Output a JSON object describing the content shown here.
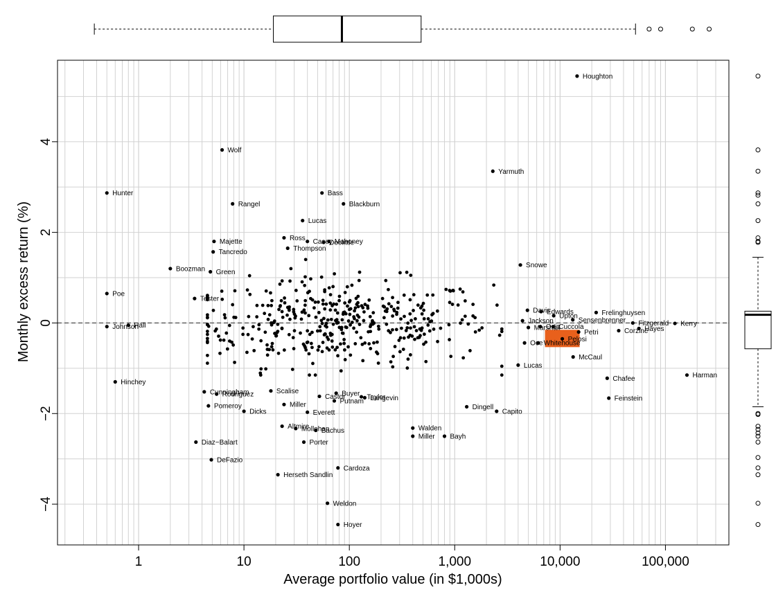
{
  "chart_data": {
    "type": "scatter",
    "title": "",
    "xlabel": "Average portfolio value (in $1,000s)",
    "ylabel": "Monthly excess return (%)",
    "x_scale": "log",
    "xlim": [
      0.17,
      400000
    ],
    "ylim": [
      -4.9,
      5.8
    ],
    "x_ticks": [
      1,
      10,
      100,
      1000,
      10000,
      100000
    ],
    "x_tick_labels": [
      "1",
      "10",
      "100",
      "1,000",
      "10,000",
      "100,000"
    ],
    "y_ticks": [
      -4,
      -2,
      0,
      2,
      4
    ],
    "y_tick_labels": [
      "−4",
      "−2",
      "0",
      "2",
      "4"
    ],
    "grid": true,
    "reference_line_y": 0,
    "highlight": {
      "name": "Pelosi",
      "x": 10500,
      "y": -0.35,
      "color": "#e8601c"
    },
    "top_boxplot": {
      "min": 0.38,
      "q1": 19,
      "median": 85,
      "q3": 480,
      "max": 52000,
      "outliers": [
        70000,
        90000,
        180000,
        260000
      ]
    },
    "right_boxplot": {
      "min": -1.85,
      "q1": -0.57,
      "median": 0.18,
      "q3": 0.26,
      "max": 1.45,
      "outliers": [
        5.45,
        3.82,
        3.35,
        2.87,
        2.82,
        2.63,
        2.26,
        1.88,
        1.8,
        1.78,
        -2.0,
        -2.02,
        -2.28,
        -2.35,
        -2.43,
        -2.5,
        -2.63,
        -2.97,
        -3.2,
        -3.35,
        -3.98,
        -4.45
      ]
    },
    "labeled_points": [
      {
        "name": "Houghton",
        "x": 14500,
        "y": 5.45
      },
      {
        "name": "Wolf",
        "x": 6.2,
        "y": 3.82
      },
      {
        "name": "Yarmuth",
        "x": 2300,
        "y": 3.35
      },
      {
        "name": "Hunter",
        "x": 0.5,
        "y": 2.87
      },
      {
        "name": "Bass",
        "x": 55,
        "y": 2.87
      },
      {
        "name": "Rangel",
        "x": 7.8,
        "y": 2.63
      },
      {
        "name": "Blackburn",
        "x": 88,
        "y": 2.63
      },
      {
        "name": "Lucas",
        "x": 36,
        "y": 2.26
      },
      {
        "name": "Ross",
        "x": 24,
        "y": 1.88
      },
      {
        "name": "Majette",
        "x": 5.2,
        "y": 1.8
      },
      {
        "name": "Casey",
        "x": 40,
        "y": 1.8
      },
      {
        "name": "Mahoney",
        "x": 64,
        "y": 1.8
      },
      {
        "name": "Doolittle",
        "x": 57,
        "y": 1.78
      },
      {
        "name": "Thompson",
        "x": 26,
        "y": 1.65
      },
      {
        "name": "Tancredo",
        "x": 5.1,
        "y": 1.57
      },
      {
        "name": "Boozman",
        "x": 2,
        "y": 1.2
      },
      {
        "name": "Green",
        "x": 4.8,
        "y": 1.13
      },
      {
        "name": "Snowe",
        "x": 4200,
        "y": 1.28
      },
      {
        "name": "Poe",
        "x": 0.5,
        "y": 0.65
      },
      {
        "name": "Tester",
        "x": 3.4,
        "y": 0.54
      },
      {
        "name": "Johnson",
        "x": 0.5,
        "y": -0.08
      },
      {
        "name": "Hall",
        "x": 0.8,
        "y": -0.05
      },
      {
        "name": "Davis",
        "x": 4900,
        "y": 0.28
      },
      {
        "name": "Edwards",
        "x": 6600,
        "y": 0.25
      },
      {
        "name": "Upton",
        "x": 8700,
        "y": 0.16
      },
      {
        "name": "Frelinghuysen",
        "x": 22000,
        "y": 0.23
      },
      {
        "name": "Sensenbrenner",
        "x": 13200,
        "y": 0.07
      },
      {
        "name": "Jackson",
        "x": 4400,
        "y": 0.05
      },
      {
        "name": "Fitzgerald",
        "x": 49000,
        "y": 0.0
      },
      {
        "name": "Kerry",
        "x": 123000,
        "y": -0.01
      },
      {
        "name": "Marshall",
        "x": 5000,
        "y": -0.1
      },
      {
        "name": "Ortiz",
        "x": 6500,
        "y": -0.08
      },
      {
        "name": "Cuccola",
        "x": 8600,
        "y": -0.08
      },
      {
        "name": "Hayes",
        "x": 56000,
        "y": -0.12
      },
      {
        "name": "Corzine",
        "x": 36000,
        "y": -0.17
      },
      {
        "name": "Petri",
        "x": 15000,
        "y": -0.2
      },
      {
        "name": "Oce",
        "x": 4600,
        "y": -0.44
      },
      {
        "name": "Whitehouse",
        "x": 6200,
        "y": -0.44
      },
      {
        "name": "Pelosi",
        "x": 10500,
        "y": -0.35
      },
      {
        "name": "McCaul",
        "x": 13300,
        "y": -0.75
      },
      {
        "name": "Lucas",
        "x": 4000,
        "y": -0.93
      },
      {
        "name": "Chafee",
        "x": 28000,
        "y": -1.22
      },
      {
        "name": "Harman",
        "x": 160000,
        "y": -1.15
      },
      {
        "name": "Feinstein",
        "x": 29000,
        "y": -1.66
      },
      {
        "name": "Hinchey",
        "x": 0.6,
        "y": -1.3
      },
      {
        "name": "Cunningham",
        "x": 4.2,
        "y": -1.52
      },
      {
        "name": "Rodriguez",
        "x": 5.5,
        "y": -1.57
      },
      {
        "name": "Scalise",
        "x": 18,
        "y": -1.5
      },
      {
        "name": "Castor",
        "x": 52,
        "y": -1.62
      },
      {
        "name": "Buyer",
        "x": 75,
        "y": -1.55
      },
      {
        "name": "Putnam",
        "x": 72,
        "y": -1.72
      },
      {
        "name": "Taylor",
        "x": 130,
        "y": -1.63
      },
      {
        "name": "Langevin",
        "x": 140,
        "y": -1.65
      },
      {
        "name": "Pomeroy",
        "x": 4.6,
        "y": -1.83
      },
      {
        "name": "Miller",
        "x": 24,
        "y": -1.8
      },
      {
        "name": "Dicks",
        "x": 10,
        "y": -1.95
      },
      {
        "name": "Everett",
        "x": 40,
        "y": -1.97
      },
      {
        "name": "Dingell",
        "x": 1300,
        "y": -1.85
      },
      {
        "name": "Capito",
        "x": 2500,
        "y": -1.95
      },
      {
        "name": "Altmire",
        "x": 23,
        "y": -2.28
      },
      {
        "name": "Mollohan",
        "x": 31,
        "y": -2.33
      },
      {
        "name": "Bachus",
        "x": 48,
        "y": -2.37
      },
      {
        "name": "Walden",
        "x": 400,
        "y": -2.32
      },
      {
        "name": "Miller",
        "x": 400,
        "y": -2.5
      },
      {
        "name": "Bayh",
        "x": 800,
        "y": -2.5
      },
      {
        "name": "Porter",
        "x": 37,
        "y": -2.63
      },
      {
        "name": "Diaz−Balart",
        "x": 3.5,
        "y": -2.63
      },
      {
        "name": "DeFazio",
        "x": 4.9,
        "y": -3.02
      },
      {
        "name": "Cardoza",
        "x": 78,
        "y": -3.2
      },
      {
        "name": "Herseth Sandlin",
        "x": 21,
        "y": -3.35
      },
      {
        "name": "Weldon",
        "x": 62,
        "y": -3.98
      },
      {
        "name": "Hoyer",
        "x": 78,
        "y": -4.45
      }
    ]
  }
}
